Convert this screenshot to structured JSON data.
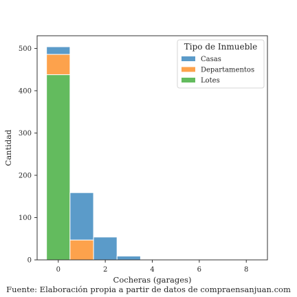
{
  "chart_data": {
    "type": "bar",
    "stacked": true,
    "xlabel": "Cocheras (garages)",
    "ylabel": "Cantidad",
    "x_ticks": [
      0,
      2,
      4,
      6,
      8
    ],
    "y_ticks": [
      0,
      100,
      200,
      300,
      400,
      500
    ],
    "xlim": [
      -0.9,
      8.9
    ],
    "ylim": [
      0,
      530
    ],
    "bin_width": 1,
    "bins": [
      {
        "x": 0,
        "Casas": 18,
        "Departamentos": 48,
        "Lotes": 438
      },
      {
        "x": 1,
        "Casas": 112,
        "Departamentos": 47,
        "Lotes": 0
      },
      {
        "x": 2,
        "Casas": 54,
        "Departamentos": 0,
        "Lotes": 0
      },
      {
        "x": 3,
        "Casas": 9,
        "Departamentos": 0,
        "Lotes": 0
      }
    ],
    "series": [
      {
        "name": "Casas",
        "color": "#5b9bc9"
      },
      {
        "name": "Departamentos",
        "color": "#fda24c"
      },
      {
        "name": "Lotes",
        "color": "#63bb5e"
      }
    ],
    "legend": {
      "title": "Tipo de Inmueble",
      "position": "top-right"
    },
    "grid": false
  },
  "caption": "Fuente: Elaboración propia a partir de datos de compraensanjuan.com"
}
